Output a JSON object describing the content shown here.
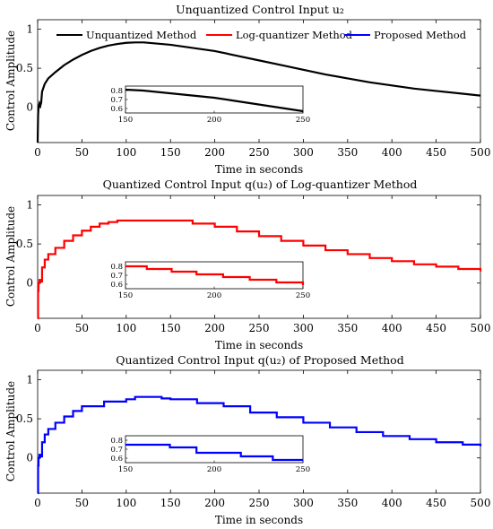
{
  "chart_data": [
    {
      "type": "line",
      "title": "Unquantized Control Input u₂",
      "xlabel": "Time in seconds",
      "ylabel": "Control Amplitude",
      "xlim": [
        0,
        500
      ],
      "ylim": [
        -0.45,
        1.12
      ],
      "x_ticks": [
        0,
        50,
        100,
        150,
        200,
        250,
        300,
        350,
        400,
        450,
        500
      ],
      "y_ticks": [
        0,
        0.5,
        1
      ],
      "y_tick_labels": [
        "0",
        "0.5",
        "1"
      ],
      "grid": false,
      "legend": {
        "placement": "top",
        "entries": [
          {
            "name": "Unquantized Method",
            "color": "#000000"
          },
          {
            "name": "Log-quantizer Method",
            "color": "#ff0000"
          },
          {
            "name": "Proposed Method",
            "color": "#0000ff"
          }
        ]
      },
      "series": [
        {
          "name": "Unquantized Method",
          "color": "#000000",
          "style": "smooth",
          "x": [
            0,
            0.5,
            1,
            2,
            3,
            4,
            5,
            8,
            12,
            20,
            30,
            40,
            50,
            60,
            70,
            80,
            90,
            100,
            110,
            120,
            130,
            140,
            150,
            175,
            200,
            225,
            250,
            275,
            300,
            325,
            350,
            375,
            400,
            425,
            450,
            475,
            500
          ],
          "values": [
            -0.45,
            -0.1,
            0.0,
            0.05,
            0.02,
            0.06,
            0.2,
            0.3,
            0.37,
            0.45,
            0.54,
            0.61,
            0.67,
            0.72,
            0.76,
            0.79,
            0.81,
            0.825,
            0.83,
            0.83,
            0.82,
            0.81,
            0.8,
            0.76,
            0.72,
            0.66,
            0.6,
            0.54,
            0.48,
            0.42,
            0.37,
            0.32,
            0.28,
            0.24,
            0.21,
            0.18,
            0.15
          ]
        }
      ],
      "inset": {
        "xlim": [
          150,
          250
        ],
        "ylim": [
          0.55,
          0.85
        ],
        "x_ticks": [
          150,
          200,
          250
        ],
        "y_ticks": [
          0.6,
          0.7,
          0.8
        ],
        "series": [
          {
            "color": "#000000",
            "style": "smooth",
            "x": [
              150,
              160,
              170,
              180,
              190,
              200,
              210,
              220,
              230,
              240,
              250
            ],
            "values": [
              0.81,
              0.8,
              0.78,
              0.76,
              0.74,
              0.72,
              0.69,
              0.66,
              0.63,
              0.6,
              0.57
            ]
          }
        ]
      }
    },
    {
      "type": "line",
      "title": "Quantized Control Input q(u₂) of Log-quantizer Method",
      "xlabel": "Time in seconds",
      "ylabel": "Control Amplitude",
      "xlim": [
        0,
        500
      ],
      "ylim": [
        -0.45,
        1.12
      ],
      "x_ticks": [
        0,
        50,
        100,
        150,
        200,
        250,
        300,
        350,
        400,
        450,
        500
      ],
      "y_ticks": [
        0,
        0.5,
        1
      ],
      "y_tick_labels": [
        "0",
        "0.5",
        "1"
      ],
      "grid": false,
      "series": [
        {
          "name": "Log-quantizer Method",
          "color": "#ff0000",
          "style": "steps",
          "x": [
            0,
            0.5,
            1,
            2,
            3,
            5,
            8,
            12,
            20,
            30,
            40,
            50,
            60,
            70,
            80,
            90,
            100,
            110,
            120,
            130,
            140,
            150,
            175,
            200,
            225,
            250,
            275,
            300,
            325,
            350,
            375,
            400,
            425,
            450,
            475,
            500
          ],
          "values": [
            -0.45,
            -0.1,
            0.0,
            0.04,
            0.02,
            0.2,
            0.3,
            0.37,
            0.45,
            0.54,
            0.61,
            0.67,
            0.72,
            0.76,
            0.78,
            0.8,
            0.8,
            0.8,
            0.8,
            0.8,
            0.8,
            0.8,
            0.76,
            0.72,
            0.66,
            0.6,
            0.54,
            0.48,
            0.42,
            0.37,
            0.32,
            0.28,
            0.24,
            0.21,
            0.18,
            0.15
          ]
        }
      ],
      "inset": {
        "xlim": [
          150,
          250
        ],
        "ylim": [
          0.55,
          0.85
        ],
        "x_ticks": [
          150,
          200,
          250
        ],
        "y_ticks": [
          0.6,
          0.7,
          0.8
        ],
        "series": [
          {
            "color": "#ff0000",
            "style": "steps",
            "x": [
              150,
              162,
              176,
              190,
              205,
              220,
              235,
              250
            ],
            "values": [
              0.8,
              0.77,
              0.74,
              0.71,
              0.68,
              0.65,
              0.62,
              0.59
            ]
          }
        ]
      }
    },
    {
      "type": "line",
      "title": "Quantized Control Input q(u₂) of Proposed Method",
      "xlabel": "Time in seconds",
      "ylabel": "Control Amplitude",
      "xlim": [
        0,
        500
      ],
      "ylim": [
        -0.45,
        1.12
      ],
      "x_ticks": [
        0,
        50,
        100,
        150,
        200,
        250,
        300,
        350,
        400,
        450,
        500
      ],
      "y_ticks": [
        0,
        0.5,
        1
      ],
      "y_tick_labels": [
        "0",
        "0.5",
        "1"
      ],
      "grid": false,
      "series": [
        {
          "name": "Proposed Method",
          "color": "#0000ff",
          "style": "steps",
          "x": [
            0,
            0.5,
            1,
            2,
            3,
            5,
            8,
            12,
            20,
            30,
            40,
            50,
            75,
            100,
            110,
            120,
            130,
            140,
            150,
            180,
            210,
            240,
            270,
            300,
            330,
            360,
            390,
            420,
            450,
            480,
            500
          ],
          "values": [
            -0.45,
            -0.1,
            0.0,
            0.04,
            0.02,
            0.2,
            0.3,
            0.37,
            0.45,
            0.53,
            0.6,
            0.66,
            0.72,
            0.75,
            0.78,
            0.78,
            0.78,
            0.76,
            0.75,
            0.7,
            0.66,
            0.58,
            0.52,
            0.45,
            0.39,
            0.33,
            0.28,
            0.24,
            0.2,
            0.17,
            0.15
          ]
        }
      ],
      "inset": {
        "xlim": [
          150,
          250
        ],
        "ylim": [
          0.55,
          0.85
        ],
        "x_ticks": [
          150,
          200,
          250
        ],
        "y_ticks": [
          0.6,
          0.7,
          0.8
        ],
        "series": [
          {
            "color": "#0000ff",
            "style": "steps",
            "x": [
              150,
              175,
              190,
              215,
              233,
              250
            ],
            "values": [
              0.75,
              0.72,
              0.66,
              0.62,
              0.58,
              0.58
            ]
          }
        ]
      }
    }
  ]
}
